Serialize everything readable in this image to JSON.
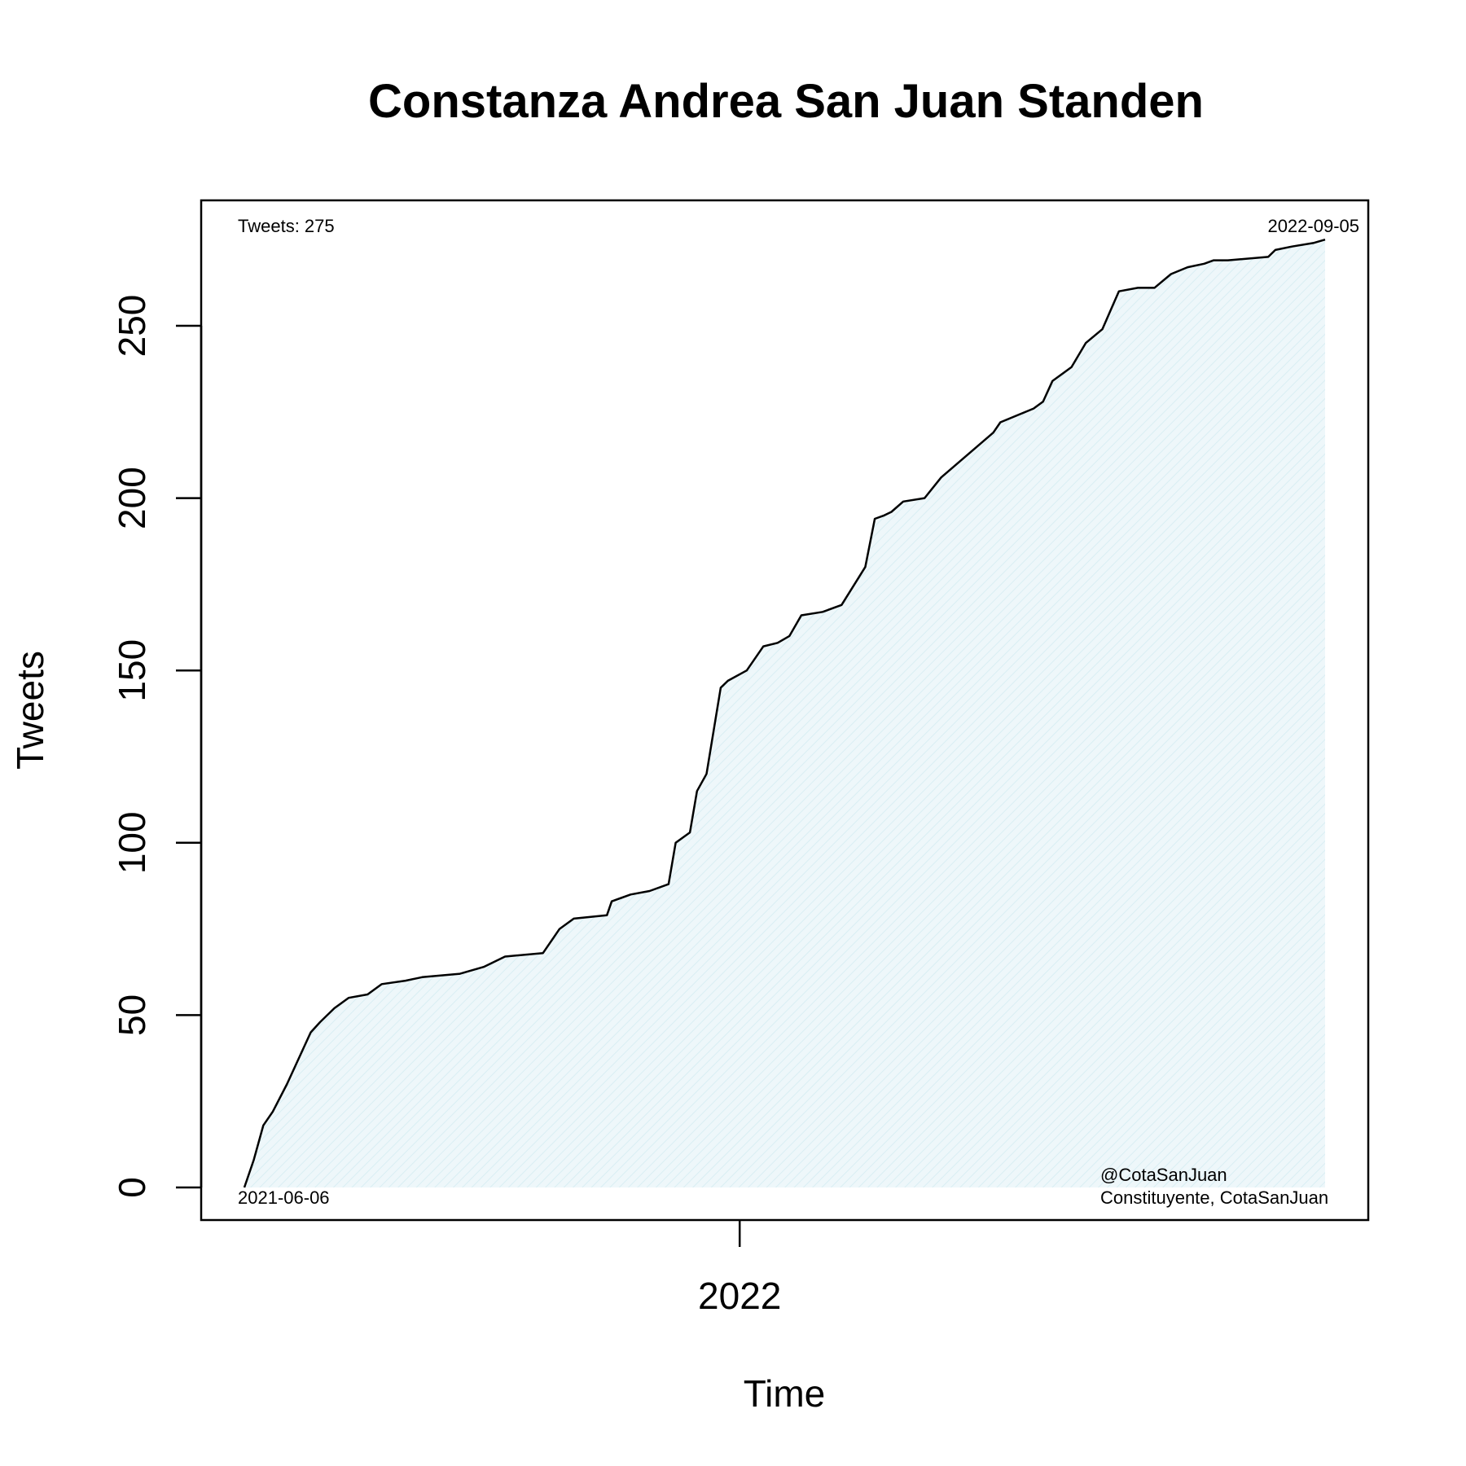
{
  "chart_data": {
    "type": "area",
    "title": "Constanza Andrea San Juan Standen",
    "xlabel": "Time",
    "ylabel": "Tweets",
    "x_start": "2021-06-06",
    "x_end": "2022-09-05",
    "ylim": [
      0,
      275
    ],
    "y_ticks": [
      0,
      50,
      100,
      150,
      200,
      250
    ],
    "x_ticks": [
      {
        "label": "2022",
        "date": "2022-01-01"
      }
    ],
    "grid": false,
    "legend": "none",
    "line_color": "#000000",
    "fill_color": "#eaf5f8",
    "x": [
      "2021-06-06",
      "2021-06-10",
      "2021-06-14",
      "2021-06-18",
      "2021-06-24",
      "2021-07-04",
      "2021-07-08",
      "2021-07-14",
      "2021-07-20",
      "2021-07-28",
      "2021-08-03",
      "2021-08-13",
      "2021-08-20",
      "2021-09-05",
      "2021-09-15",
      "2021-09-24",
      "2021-10-10",
      "2021-10-17",
      "2021-10-23",
      "2021-11-06",
      "2021-11-08",
      "2021-11-16",
      "2021-11-24",
      "2021-12-02",
      "2021-12-05",
      "2021-12-11",
      "2021-12-14",
      "2021-12-18",
      "2021-12-24",
      "2021-12-27",
      "2022-01-04",
      "2022-01-11",
      "2022-01-17",
      "2022-01-22",
      "2022-01-27",
      "2022-02-05",
      "2022-02-13",
      "2022-02-23",
      "2022-02-27",
      "2022-03-03",
      "2022-03-06",
      "2022-03-11",
      "2022-03-20",
      "2022-03-27",
      "2022-04-18",
      "2022-04-21",
      "2022-05-05",
      "2022-05-09",
      "2022-05-13",
      "2022-05-21",
      "2022-05-27",
      "2022-06-03",
      "2022-06-10",
      "2022-06-18",
      "2022-06-25",
      "2022-07-02",
      "2022-07-09",
      "2022-07-16",
      "2022-07-20",
      "2022-07-26",
      "2022-08-12",
      "2022-08-15",
      "2022-08-22",
      "2022-08-31",
      "2022-09-05"
    ],
    "y": [
      0,
      8,
      18,
      22,
      30,
      45,
      48,
      52,
      55,
      56,
      59,
      60,
      61,
      62,
      64,
      67,
      68,
      75,
      78,
      79,
      83,
      85,
      86,
      88,
      100,
      103,
      115,
      120,
      145,
      147,
      150,
      157,
      158,
      160,
      166,
      167,
      169,
      180,
      194,
      195,
      196,
      199,
      200,
      206,
      219,
      222,
      226,
      228,
      234,
      238,
      245,
      249,
      260,
      261,
      261,
      265,
      267,
      268,
      269,
      269,
      270,
      272,
      273,
      274,
      275
    ]
  },
  "annotations": {
    "top_left": "Tweets: 275",
    "top_right": "2022-09-05",
    "bottom_left": "2021-06-06",
    "bottom_right_line1": "@CotaSanJuan",
    "bottom_right_line2": "Constituyente, CotaSanJuan"
  }
}
